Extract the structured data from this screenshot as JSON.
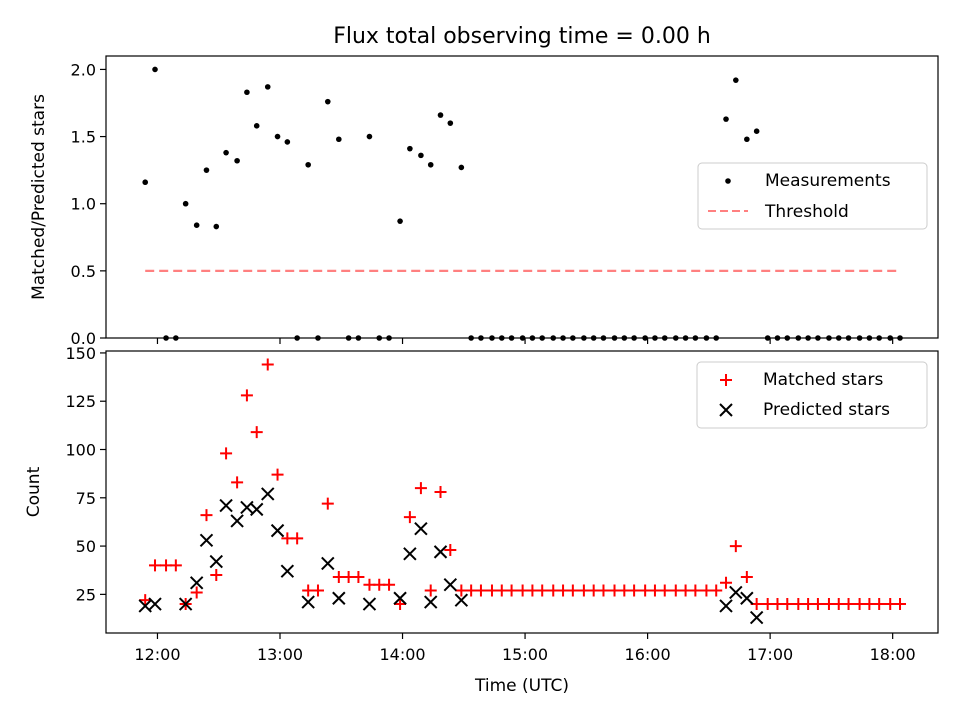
{
  "chart_data": [
    {
      "type": "scatter",
      "title": "Flux total observing time = 0.00 h",
      "ylabel": "Matched/Predicted stars",
      "xlabel": "",
      "xlim": [
        11.58,
        18.37
      ],
      "ylim": [
        0,
        2.1
      ],
      "yticks": [
        0.0,
        0.5,
        1.0,
        1.5,
        2.0
      ],
      "ytick_labels": [
        "0.0",
        "0.5",
        "1.0",
        "1.5",
        "2.0"
      ],
      "xticks": [
        12,
        13,
        14,
        15,
        16,
        17,
        18
      ],
      "legend": {
        "placement": "center-right",
        "entries": [
          "Measurements",
          "Threshold"
        ]
      },
      "series": [
        {
          "name": "Measurements",
          "marker": "dot",
          "color": "#000000",
          "points": [
            [
              11.9,
              1.16
            ],
            [
              11.98,
              2.0
            ],
            [
              12.07,
              0.0
            ],
            [
              12.15,
              0.0
            ],
            [
              12.23,
              1.0
            ],
            [
              12.32,
              0.84
            ],
            [
              12.4,
              1.25
            ],
            [
              12.48,
              0.83
            ],
            [
              12.56,
              1.38
            ],
            [
              12.65,
              1.32
            ],
            [
              12.73,
              1.83
            ],
            [
              12.81,
              1.58
            ],
            [
              12.9,
              1.87
            ],
            [
              12.98,
              1.5
            ],
            [
              13.06,
              1.46
            ],
            [
              13.14,
              0.0
            ],
            [
              13.23,
              1.29
            ],
            [
              13.31,
              0.0
            ],
            [
              13.39,
              1.76
            ],
            [
              13.48,
              1.48
            ],
            [
              13.56,
              0.0
            ],
            [
              13.64,
              0.0
            ],
            [
              13.73,
              1.5
            ],
            [
              13.81,
              0.0
            ],
            [
              13.89,
              0.0
            ],
            [
              13.98,
              0.87
            ],
            [
              14.06,
              1.41
            ],
            [
              14.15,
              1.36
            ],
            [
              14.23,
              1.29
            ],
            [
              14.31,
              1.66
            ],
            [
              14.39,
              1.6
            ],
            [
              14.48,
              1.27
            ],
            [
              14.56,
              0.0
            ],
            [
              14.64,
              0.0
            ],
            [
              14.73,
              0.0
            ],
            [
              14.81,
              0.0
            ],
            [
              14.89,
              0.0
            ],
            [
              14.98,
              0.0
            ],
            [
              15.06,
              0.0
            ],
            [
              15.14,
              0.0
            ],
            [
              15.23,
              0.0
            ],
            [
              15.31,
              0.0
            ],
            [
              15.39,
              0.0
            ],
            [
              15.48,
              0.0
            ],
            [
              15.56,
              0.0
            ],
            [
              15.64,
              0.0
            ],
            [
              15.73,
              0.0
            ],
            [
              15.81,
              0.0
            ],
            [
              15.89,
              0.0
            ],
            [
              15.98,
              0.0
            ],
            [
              16.06,
              0.0
            ],
            [
              16.14,
              0.0
            ],
            [
              16.23,
              0.0
            ],
            [
              16.31,
              0.0
            ],
            [
              16.39,
              0.0
            ],
            [
              16.48,
              0.0
            ],
            [
              16.56,
              0.0
            ],
            [
              16.64,
              1.63
            ],
            [
              16.72,
              1.92
            ],
            [
              16.81,
              1.48
            ],
            [
              16.89,
              1.54
            ],
            [
              16.98,
              0.0
            ],
            [
              17.06,
              0.0
            ],
            [
              17.14,
              0.0
            ],
            [
              17.23,
              0.0
            ],
            [
              17.31,
              0.0
            ],
            [
              17.39,
              0.0
            ],
            [
              17.48,
              0.0
            ],
            [
              17.56,
              0.0
            ],
            [
              17.64,
              0.0
            ],
            [
              17.73,
              0.0
            ],
            [
              17.81,
              0.0
            ],
            [
              17.89,
              0.0
            ],
            [
              17.98,
              0.0
            ],
            [
              18.06,
              0.0
            ]
          ]
        },
        {
          "name": "Threshold",
          "marker": "dashed-line",
          "color": "#ff8080",
          "points": [
            [
              11.9,
              0.5
            ],
            [
              18.06,
              0.5
            ]
          ]
        }
      ]
    },
    {
      "type": "scatter",
      "title": "",
      "ylabel": "Count",
      "xlabel": "Time (UTC)",
      "xlim": [
        11.58,
        18.37
      ],
      "ylim": [
        5,
        151
      ],
      "yticks": [
        25,
        50,
        75,
        100,
        125,
        150
      ],
      "ytick_labels": [
        "25",
        "50",
        "75",
        "100",
        "125",
        "150"
      ],
      "xticks": [
        12,
        13,
        14,
        15,
        16,
        17,
        18
      ],
      "xtick_labels": [
        "12:00",
        "13:00",
        "14:00",
        "15:00",
        "16:00",
        "17:00",
        "18:00"
      ],
      "legend": {
        "placement": "top-right",
        "entries": [
          "Matched stars",
          "Predicted stars"
        ]
      },
      "series": [
        {
          "name": "Matched stars",
          "marker": "plus",
          "color": "#ff0000",
          "points": [
            [
              11.9,
              22
            ],
            [
              11.98,
              40
            ],
            [
              12.07,
              40
            ],
            [
              12.15,
              40
            ],
            [
              12.23,
              20
            ],
            [
              12.32,
              26
            ],
            [
              12.4,
              66
            ],
            [
              12.48,
              35
            ],
            [
              12.56,
              98
            ],
            [
              12.65,
              83
            ],
            [
              12.73,
              128
            ],
            [
              12.81,
              109
            ],
            [
              12.9,
              144
            ],
            [
              12.98,
              87
            ],
            [
              13.06,
              54
            ],
            [
              13.14,
              54
            ],
            [
              13.23,
              27
            ],
            [
              13.31,
              27
            ],
            [
              13.39,
              72
            ],
            [
              13.48,
              34
            ],
            [
              13.56,
              34
            ],
            [
              13.64,
              34
            ],
            [
              13.73,
              30
            ],
            [
              13.81,
              30
            ],
            [
              13.89,
              30
            ],
            [
              13.98,
              20
            ],
            [
              14.06,
              65
            ],
            [
              14.15,
              80
            ],
            [
              14.23,
              27
            ],
            [
              14.31,
              78
            ],
            [
              14.39,
              48
            ],
            [
              14.48,
              27
            ],
            [
              14.56,
              27
            ],
            [
              14.64,
              27
            ],
            [
              14.73,
              27
            ],
            [
              14.81,
              27
            ],
            [
              14.89,
              27
            ],
            [
              14.98,
              27
            ],
            [
              15.06,
              27
            ],
            [
              15.14,
              27
            ],
            [
              15.23,
              27
            ],
            [
              15.31,
              27
            ],
            [
              15.39,
              27
            ],
            [
              15.48,
              27
            ],
            [
              15.56,
              27
            ],
            [
              15.64,
              27
            ],
            [
              15.73,
              27
            ],
            [
              15.81,
              27
            ],
            [
              15.89,
              27
            ],
            [
              15.98,
              27
            ],
            [
              16.06,
              27
            ],
            [
              16.14,
              27
            ],
            [
              16.23,
              27
            ],
            [
              16.31,
              27
            ],
            [
              16.39,
              27
            ],
            [
              16.48,
              27
            ],
            [
              16.56,
              27
            ],
            [
              16.64,
              31
            ],
            [
              16.72,
              50
            ],
            [
              16.81,
              34
            ],
            [
              16.89,
              20
            ],
            [
              16.98,
              20
            ],
            [
              17.06,
              20
            ],
            [
              17.14,
              20
            ],
            [
              17.23,
              20
            ],
            [
              17.31,
              20
            ],
            [
              17.39,
              20
            ],
            [
              17.48,
              20
            ],
            [
              17.56,
              20
            ],
            [
              17.64,
              20
            ],
            [
              17.73,
              20
            ],
            [
              17.81,
              20
            ],
            [
              17.89,
              20
            ],
            [
              17.98,
              20
            ],
            [
              18.06,
              20
            ]
          ]
        },
        {
          "name": "Predicted stars",
          "marker": "x",
          "color": "#000000",
          "points": [
            [
              11.9,
              19
            ],
            [
              11.98,
              20
            ],
            [
              12.23,
              20
            ],
            [
              12.32,
              31
            ],
            [
              12.4,
              53
            ],
            [
              12.48,
              42
            ],
            [
              12.56,
              71
            ],
            [
              12.65,
              63
            ],
            [
              12.73,
              70
            ],
            [
              12.81,
              69
            ],
            [
              12.9,
              77
            ],
            [
              12.98,
              58
            ],
            [
              13.06,
              37
            ],
            [
              13.23,
              21
            ],
            [
              13.39,
              41
            ],
            [
              13.48,
              23
            ],
            [
              13.73,
              20
            ],
            [
              13.98,
              23
            ],
            [
              14.06,
              46
            ],
            [
              14.15,
              59
            ],
            [
              14.23,
              21
            ],
            [
              14.31,
              47
            ],
            [
              14.39,
              30
            ],
            [
              14.48,
              22
            ],
            [
              16.64,
              19
            ],
            [
              16.72,
              26
            ],
            [
              16.81,
              23
            ],
            [
              16.89,
              13
            ]
          ]
        }
      ]
    }
  ]
}
